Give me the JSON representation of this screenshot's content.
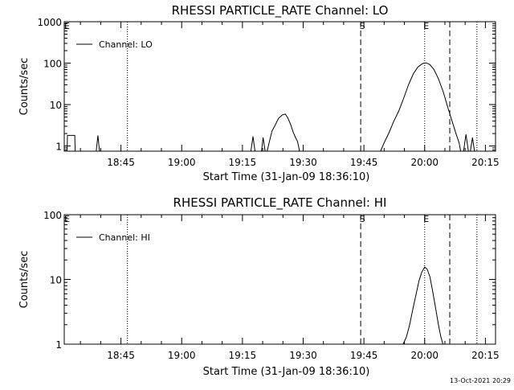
{
  "footer_timestamp": "13-Oct-2021 20:29",
  "chart_data": [
    {
      "type": "line",
      "title": "RHESSI PARTICLE_RATE Channel: LO",
      "xlabel": "Start Time (31-Jan-09 18:36:10)",
      "ylabel": "Counts/sec",
      "yscale": "log",
      "ylim": [
        0.75,
        1000
      ],
      "xlim_minutes": [
        -4,
        102.5
      ],
      "x_ticks": [
        {
          "t": 10,
          "label": "18:45"
        },
        {
          "t": 25,
          "label": "19:00"
        },
        {
          "t": 40,
          "label": "19:15"
        },
        {
          "t": 55,
          "label": "19:30"
        },
        {
          "t": 70,
          "label": "19:45"
        },
        {
          "t": 85,
          "label": "20:00"
        },
        {
          "t": 100,
          "label": "20:15"
        }
      ],
      "y_ticks": [
        {
          "v": 1,
          "label": "1"
        },
        {
          "v": 10,
          "label": "10"
        },
        {
          "v": 100,
          "label": "100"
        },
        {
          "v": 1000,
          "label": "1000"
        }
      ],
      "legend": {
        "placement": "top-left",
        "label": "Channel: LO"
      },
      "markers": [
        {
          "t": 11.6,
          "style": "dotted",
          "label": ""
        },
        {
          "t": 69.2,
          "style": "dashed",
          "label": "S"
        },
        {
          "t": 85.0,
          "style": "dotted",
          "label": "E"
        },
        {
          "t": 91.2,
          "style": "dashed",
          "label": ""
        },
        {
          "t": 97.9,
          "style": "dotted",
          "label": ""
        }
      ],
      "corner_labels": [
        {
          "t": -3.3,
          "label": "E"
        }
      ],
      "series": [
        {
          "segments": [
            [
              [
                -3.3,
                0.75
              ],
              [
                -3.2,
                1.8
              ],
              [
                -1.4,
                1.8
              ],
              [
                -1.3,
                0.75
              ]
            ],
            [
              [
                3.9,
                0.75
              ],
              [
                4.3,
                1.8
              ],
              [
                4.7,
                0.75
              ]
            ],
            [
              [
                42.1,
                0.75
              ],
              [
                42.6,
                1.7
              ],
              [
                43.1,
                0.75
              ]
            ],
            [
              [
                44.7,
                0.75
              ],
              [
                45.1,
                1.6
              ],
              [
                45.6,
                0.75
              ]
            ],
            [
              [
                46.1,
                0.75
              ],
              [
                46.6,
                1.2
              ],
              [
                47.3,
                2.3
              ],
              [
                48.1,
                3.2
              ],
              [
                48.9,
                4.6
              ],
              [
                49.8,
                5.6
              ],
              [
                50.6,
                5.9
              ],
              [
                51.2,
                4.8
              ],
              [
                51.9,
                3.3
              ],
              [
                52.5,
                2.2
              ],
              [
                53.1,
                1.6
              ],
              [
                53.6,
                1.3
              ],
              [
                54.1,
                0.75
              ]
            ],
            [
              [
                74.1,
                0.75
              ],
              [
                75.0,
                1.2
              ],
              [
                76.2,
                2.1
              ],
              [
                77.3,
                3.8
              ],
              [
                78.6,
                7.0
              ],
              [
                79.8,
                14.0
              ],
              [
                81.0,
                30.0
              ],
              [
                82.2,
                55.0
              ],
              [
                83.3,
                80.0
              ],
              [
                84.5,
                98.0
              ],
              [
                85.4,
                102.0
              ],
              [
                86.3,
                92.0
              ],
              [
                87.3,
                70.0
              ],
              [
                88.4,
                42.0
              ],
              [
                89.6,
                20.0
              ],
              [
                90.8,
                8.0
              ],
              [
                91.9,
                3.6
              ],
              [
                92.8,
                1.9
              ],
              [
                93.5,
                1.2
              ],
              [
                93.9,
                0.75
              ]
            ],
            [
              [
                94.6,
                0.75
              ],
              [
                95.2,
                1.9
              ],
              [
                95.8,
                0.75
              ]
            ],
            [
              [
                96.3,
                0.75
              ],
              [
                96.8,
                1.6
              ],
              [
                97.3,
                0.75
              ]
            ]
          ]
        }
      ]
    },
    {
      "type": "line",
      "title": "RHESSI PARTICLE_RATE Channel: HI",
      "xlabel": "Start Time (31-Jan-09 18:36:10)",
      "ylabel": "Counts/sec",
      "yscale": "log",
      "ylim": [
        1,
        100
      ],
      "xlim_minutes": [
        -4,
        102.5
      ],
      "x_ticks": [
        {
          "t": 10,
          "label": "18:45"
        },
        {
          "t": 25,
          "label": "19:00"
        },
        {
          "t": 40,
          "label": "19:15"
        },
        {
          "t": 55,
          "label": "19:30"
        },
        {
          "t": 70,
          "label": "19:45"
        },
        {
          "t": 85,
          "label": "20:00"
        },
        {
          "t": 100,
          "label": "20:15"
        }
      ],
      "y_ticks": [
        {
          "v": 1,
          "label": "1"
        },
        {
          "v": 10,
          "label": "10"
        },
        {
          "v": 100,
          "label": "100"
        }
      ],
      "legend": {
        "placement": "top-left",
        "label": "Channel: HI"
      },
      "markers": [
        {
          "t": 11.6,
          "style": "dotted",
          "label": ""
        },
        {
          "t": 69.2,
          "style": "dashed",
          "label": "S"
        },
        {
          "t": 85.0,
          "style": "dotted",
          "label": "E"
        },
        {
          "t": 91.2,
          "style": "dashed",
          "label": ""
        },
        {
          "t": 97.9,
          "style": "dotted",
          "label": ""
        }
      ],
      "corner_labels": [
        {
          "t": -3.3,
          "label": "E"
        }
      ],
      "series": [
        {
          "segments": [
            [
              [
                79.7,
                1.0
              ],
              [
                80.5,
                1.3
              ],
              [
                81.3,
                2.0
              ],
              [
                82.1,
                3.5
              ],
              [
                82.9,
                6.0
              ],
              [
                83.6,
                9.5
              ],
              [
                84.3,
                13.0
              ],
              [
                85.0,
                15.5
              ],
              [
                85.6,
                14.5
              ],
              [
                86.3,
                11.0
              ],
              [
                87.0,
                6.5
              ],
              [
                87.7,
                3.6
              ],
              [
                88.4,
                2.0
              ],
              [
                89.0,
                1.3
              ],
              [
                89.5,
                1.0
              ]
            ]
          ]
        }
      ]
    }
  ]
}
